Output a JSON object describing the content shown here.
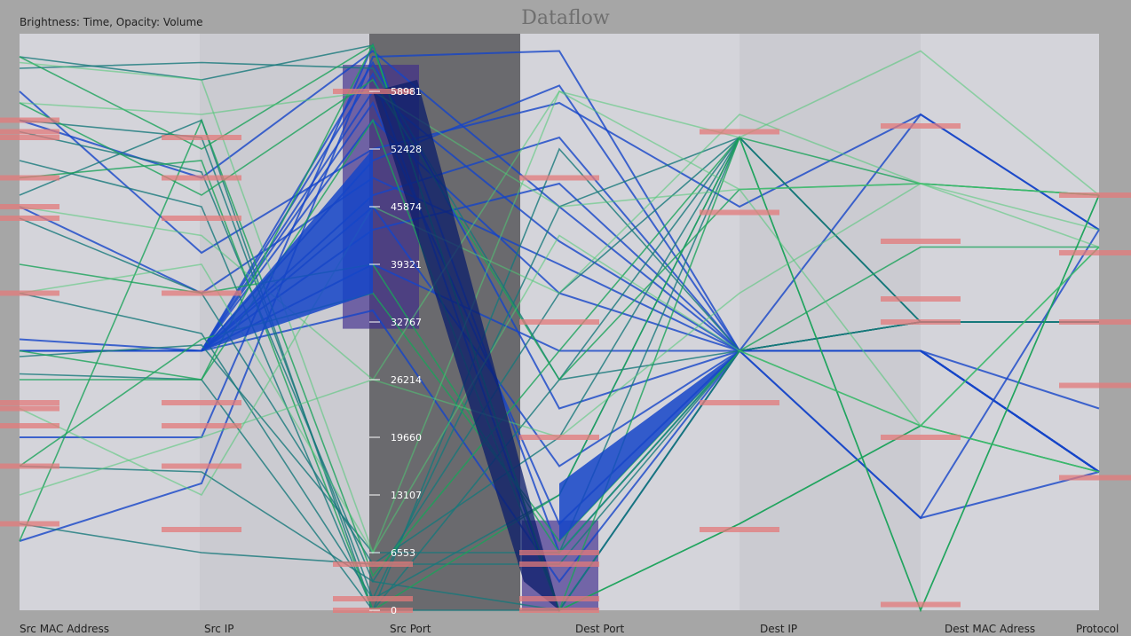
{
  "title": "Dataflow",
  "subtitle": "Brightness: Time, Opacity: Volume",
  "colors": {
    "background": "#a6a6a6",
    "panel_light": "#d4d4da",
    "panel_mid": "#cbcbd1",
    "selected_panel": "#6a6a6e",
    "highlight_bar": "#e37a7a",
    "selection_box": "#3d2a8c",
    "line_blue": "#1545c8",
    "line_teal": "#16787a",
    "line_green": "#1aa35a",
    "line_lightgreen": "#4fc874"
  },
  "chart_data": {
    "type": "parallel-coordinates",
    "title": "Dataflow",
    "subtitle": "Brightness: Time, Opacity: Volume",
    "axes": [
      "Src MAC Address",
      "Src IP",
      "Src Port",
      "Dest Port",
      "Dest IP",
      "Dest MAC Adress",
      "Protocol"
    ],
    "selected_axis": "Src Port",
    "src_port_ticks": [
      0,
      6553,
      13107,
      19660,
      26214,
      32767,
      39321,
      45874,
      52428,
      58981
    ],
    "src_port_range": [
      0,
      65535
    ],
    "selection_range_src_port": [
      32000,
      62000
    ],
    "selection_range_dest_port": [
      0,
      9000
    ],
    "grid": false,
    "legend": "none",
    "series": [
      {
        "color": "blue",
        "values": [
          0.12,
          0.22,
          0.96,
          0.97,
          0.45,
          0.16,
          0.66
        ]
      },
      {
        "color": "blue",
        "values": [
          0.45,
          0.45,
          0.78,
          0.91,
          0.45,
          0.45,
          0.35
        ]
      },
      {
        "color": "blue",
        "values": [
          0.45,
          0.45,
          0.72,
          0.82,
          0.45,
          0.45,
          0.24
        ]
      },
      {
        "color": "blue",
        "values": [
          0.45,
          0.45,
          0.66,
          0.74,
          0.45,
          0.45,
          0.24
        ]
      },
      {
        "color": "blue",
        "values": [
          0.45,
          0.45,
          0.9,
          0.64,
          0.45,
          0.45,
          0.24
        ]
      },
      {
        "color": "blue",
        "values": [
          0.45,
          0.45,
          0.85,
          0.55,
          0.45,
          0.45,
          0.24
        ]
      },
      {
        "color": "blue",
        "values": [
          0.45,
          0.45,
          0.6,
          0.45,
          0.45,
          0.45,
          0.24
        ]
      },
      {
        "color": "blue",
        "values": [
          0.45,
          0.45,
          0.95,
          0.35,
          0.45,
          0.45,
          0.24
        ]
      },
      {
        "color": "blue",
        "values": [
          0.45,
          0.45,
          0.7,
          0.25,
          0.45,
          0.45,
          0.24
        ]
      },
      {
        "color": "blue",
        "values": [
          0.45,
          0.45,
          0.88,
          0.15,
          0.45,
          0.45,
          0.24
        ]
      },
      {
        "color": "blue",
        "values": [
          0.45,
          0.45,
          0.52,
          0.05,
          0.45,
          0.45,
          0.24
        ]
      },
      {
        "color": "blue",
        "values": [
          0.47,
          0.45,
          0.93,
          0.0,
          0.45,
          0.16,
          0.24
        ]
      },
      {
        "color": "blue",
        "values": [
          0.9,
          0.62,
          0.8,
          0.88,
          0.7,
          0.86,
          0.66
        ]
      },
      {
        "color": "blue",
        "values": [
          0.85,
          0.75,
          0.97,
          0.7,
          0.45,
          0.86,
          0.66
        ]
      },
      {
        "color": "blue",
        "values": [
          0.7,
          0.55,
          0.75,
          0.6,
          0.45,
          0.45,
          0.24
        ]
      },
      {
        "color": "blue",
        "values": [
          0.3,
          0.3,
          0.98,
          0.1,
          0.45,
          0.45,
          0.24
        ]
      },
      {
        "color": "teal",
        "values": [
          0.85,
          0.82,
          0.02,
          0.7,
          0.82,
          0.5,
          0.5
        ]
      },
      {
        "color": "teal",
        "values": [
          0.83,
          0.76,
          0.05,
          0.55,
          0.82,
          0.5,
          0.5
        ]
      },
      {
        "color": "teal",
        "values": [
          0.78,
          0.7,
          0.0,
          0.4,
          0.82,
          0.5,
          0.5
        ]
      },
      {
        "color": "teal",
        "values": [
          0.68,
          0.55,
          0.08,
          0.3,
          0.82,
          0.5,
          0.5
        ]
      },
      {
        "color": "teal",
        "values": [
          0.55,
          0.48,
          0.02,
          0.2,
          0.82,
          0.5,
          0.5
        ]
      },
      {
        "color": "teal",
        "values": [
          0.44,
          0.46,
          0.1,
          0.1,
          0.82,
          0.5,
          0.5
        ]
      },
      {
        "color": "teal",
        "values": [
          0.41,
          0.4,
          0.0,
          0.0,
          0.45,
          0.5,
          0.5
        ]
      },
      {
        "color": "teal",
        "values": [
          0.25,
          0.24,
          0.05,
          0.0,
          0.45,
          0.5,
          0.5
        ]
      },
      {
        "color": "teal",
        "values": [
          0.15,
          0.1,
          0.08,
          0.08,
          0.45,
          0.5,
          0.5
        ]
      },
      {
        "color": "teal",
        "values": [
          0.96,
          0.92,
          0.98,
          0.0,
          0.45,
          0.5,
          0.5
        ]
      },
      {
        "color": "teal",
        "values": [
          0.94,
          0.95,
          0.94,
          0.4,
          0.45,
          0.5,
          0.5
        ]
      },
      {
        "color": "teal",
        "values": [
          0.72,
          0.85,
          0.0,
          0.8,
          0.45,
          0.5,
          0.5
        ]
      },
      {
        "color": "green",
        "values": [
          0.96,
          0.8,
          0.98,
          0.0,
          0.82,
          0.0,
          0.72
        ]
      },
      {
        "color": "green",
        "values": [
          0.88,
          0.72,
          0.92,
          0.4,
          0.73,
          0.74,
          0.72
        ]
      },
      {
        "color": "green",
        "values": [
          0.6,
          0.55,
          0.6,
          0.1,
          0.45,
          0.63,
          0.63
        ]
      },
      {
        "color": "green",
        "values": [
          0.4,
          0.4,
          0.85,
          0.0,
          0.15,
          0.32,
          0.24
        ]
      },
      {
        "color": "green",
        "values": [
          0.25,
          0.47,
          0.55,
          0.12,
          0.45,
          0.32,
          0.63
        ]
      },
      {
        "color": "green",
        "values": [
          0.12,
          0.85,
          0.06,
          0.45,
          0.82,
          0.0,
          0.72
        ]
      },
      {
        "color": "green",
        "values": [
          0.75,
          0.78,
          0.0,
          0.2,
          0.82,
          0.74,
          0.72
        ]
      },
      {
        "color": "green",
        "values": [
          0.45,
          0.4,
          0.98,
          0.0,
          0.15,
          0.32,
          0.24
        ]
      },
      {
        "color": "lightgreen",
        "values": [
          0.88,
          0.86,
          0.9,
          0.7,
          0.73,
          0.74,
          0.72
        ]
      },
      {
        "color": "lightgreen",
        "values": [
          0.7,
          0.65,
          0.4,
          0.3,
          0.55,
          0.74,
          0.66
        ]
      },
      {
        "color": "lightgreen",
        "values": [
          0.2,
          0.3,
          0.4,
          0.9,
          0.82,
          0.97,
          0.72
        ]
      },
      {
        "color": "lightgreen",
        "values": [
          0.35,
          0.2,
          0.7,
          0.55,
          0.86,
          0.74,
          0.63
        ]
      },
      {
        "color": "lightgreen",
        "values": [
          0.55,
          0.6,
          0.1,
          0.65,
          0.45,
          0.32,
          0.63
        ]
      },
      {
        "color": "lightgreen",
        "values": [
          0.95,
          0.92,
          0.1,
          0.9,
          0.73,
          0.32,
          0.24
        ]
      }
    ],
    "highlight_bars": [
      {
        "axis": 0,
        "values": [
          0.83,
          0.75,
          0.68,
          0.55,
          0.36,
          0.35,
          0.32,
          0.25,
          0.15,
          0.85,
          0.82,
          0.7
        ]
      },
      {
        "axis": 1,
        "values": [
          0.82,
          0.75,
          0.68,
          0.55,
          0.36,
          0.32,
          0.25,
          0.14
        ]
      },
      {
        "axis": 2,
        "values": [
          0.08,
          0.02,
          0.0,
          0.9
        ]
      },
      {
        "axis": 3,
        "values": [
          0.75,
          0.5,
          0.3,
          0.1,
          0.08,
          0.02,
          0.0
        ]
      },
      {
        "axis": 4,
        "values": [
          0.83,
          0.69,
          0.36,
          0.14
        ]
      },
      {
        "axis": 5,
        "values": [
          0.84,
          0.64,
          0.54,
          0.5,
          0.3,
          0.01
        ]
      },
      {
        "axis": 6,
        "values": [
          0.72,
          0.62,
          0.5,
          0.39,
          0.23
        ]
      }
    ]
  }
}
